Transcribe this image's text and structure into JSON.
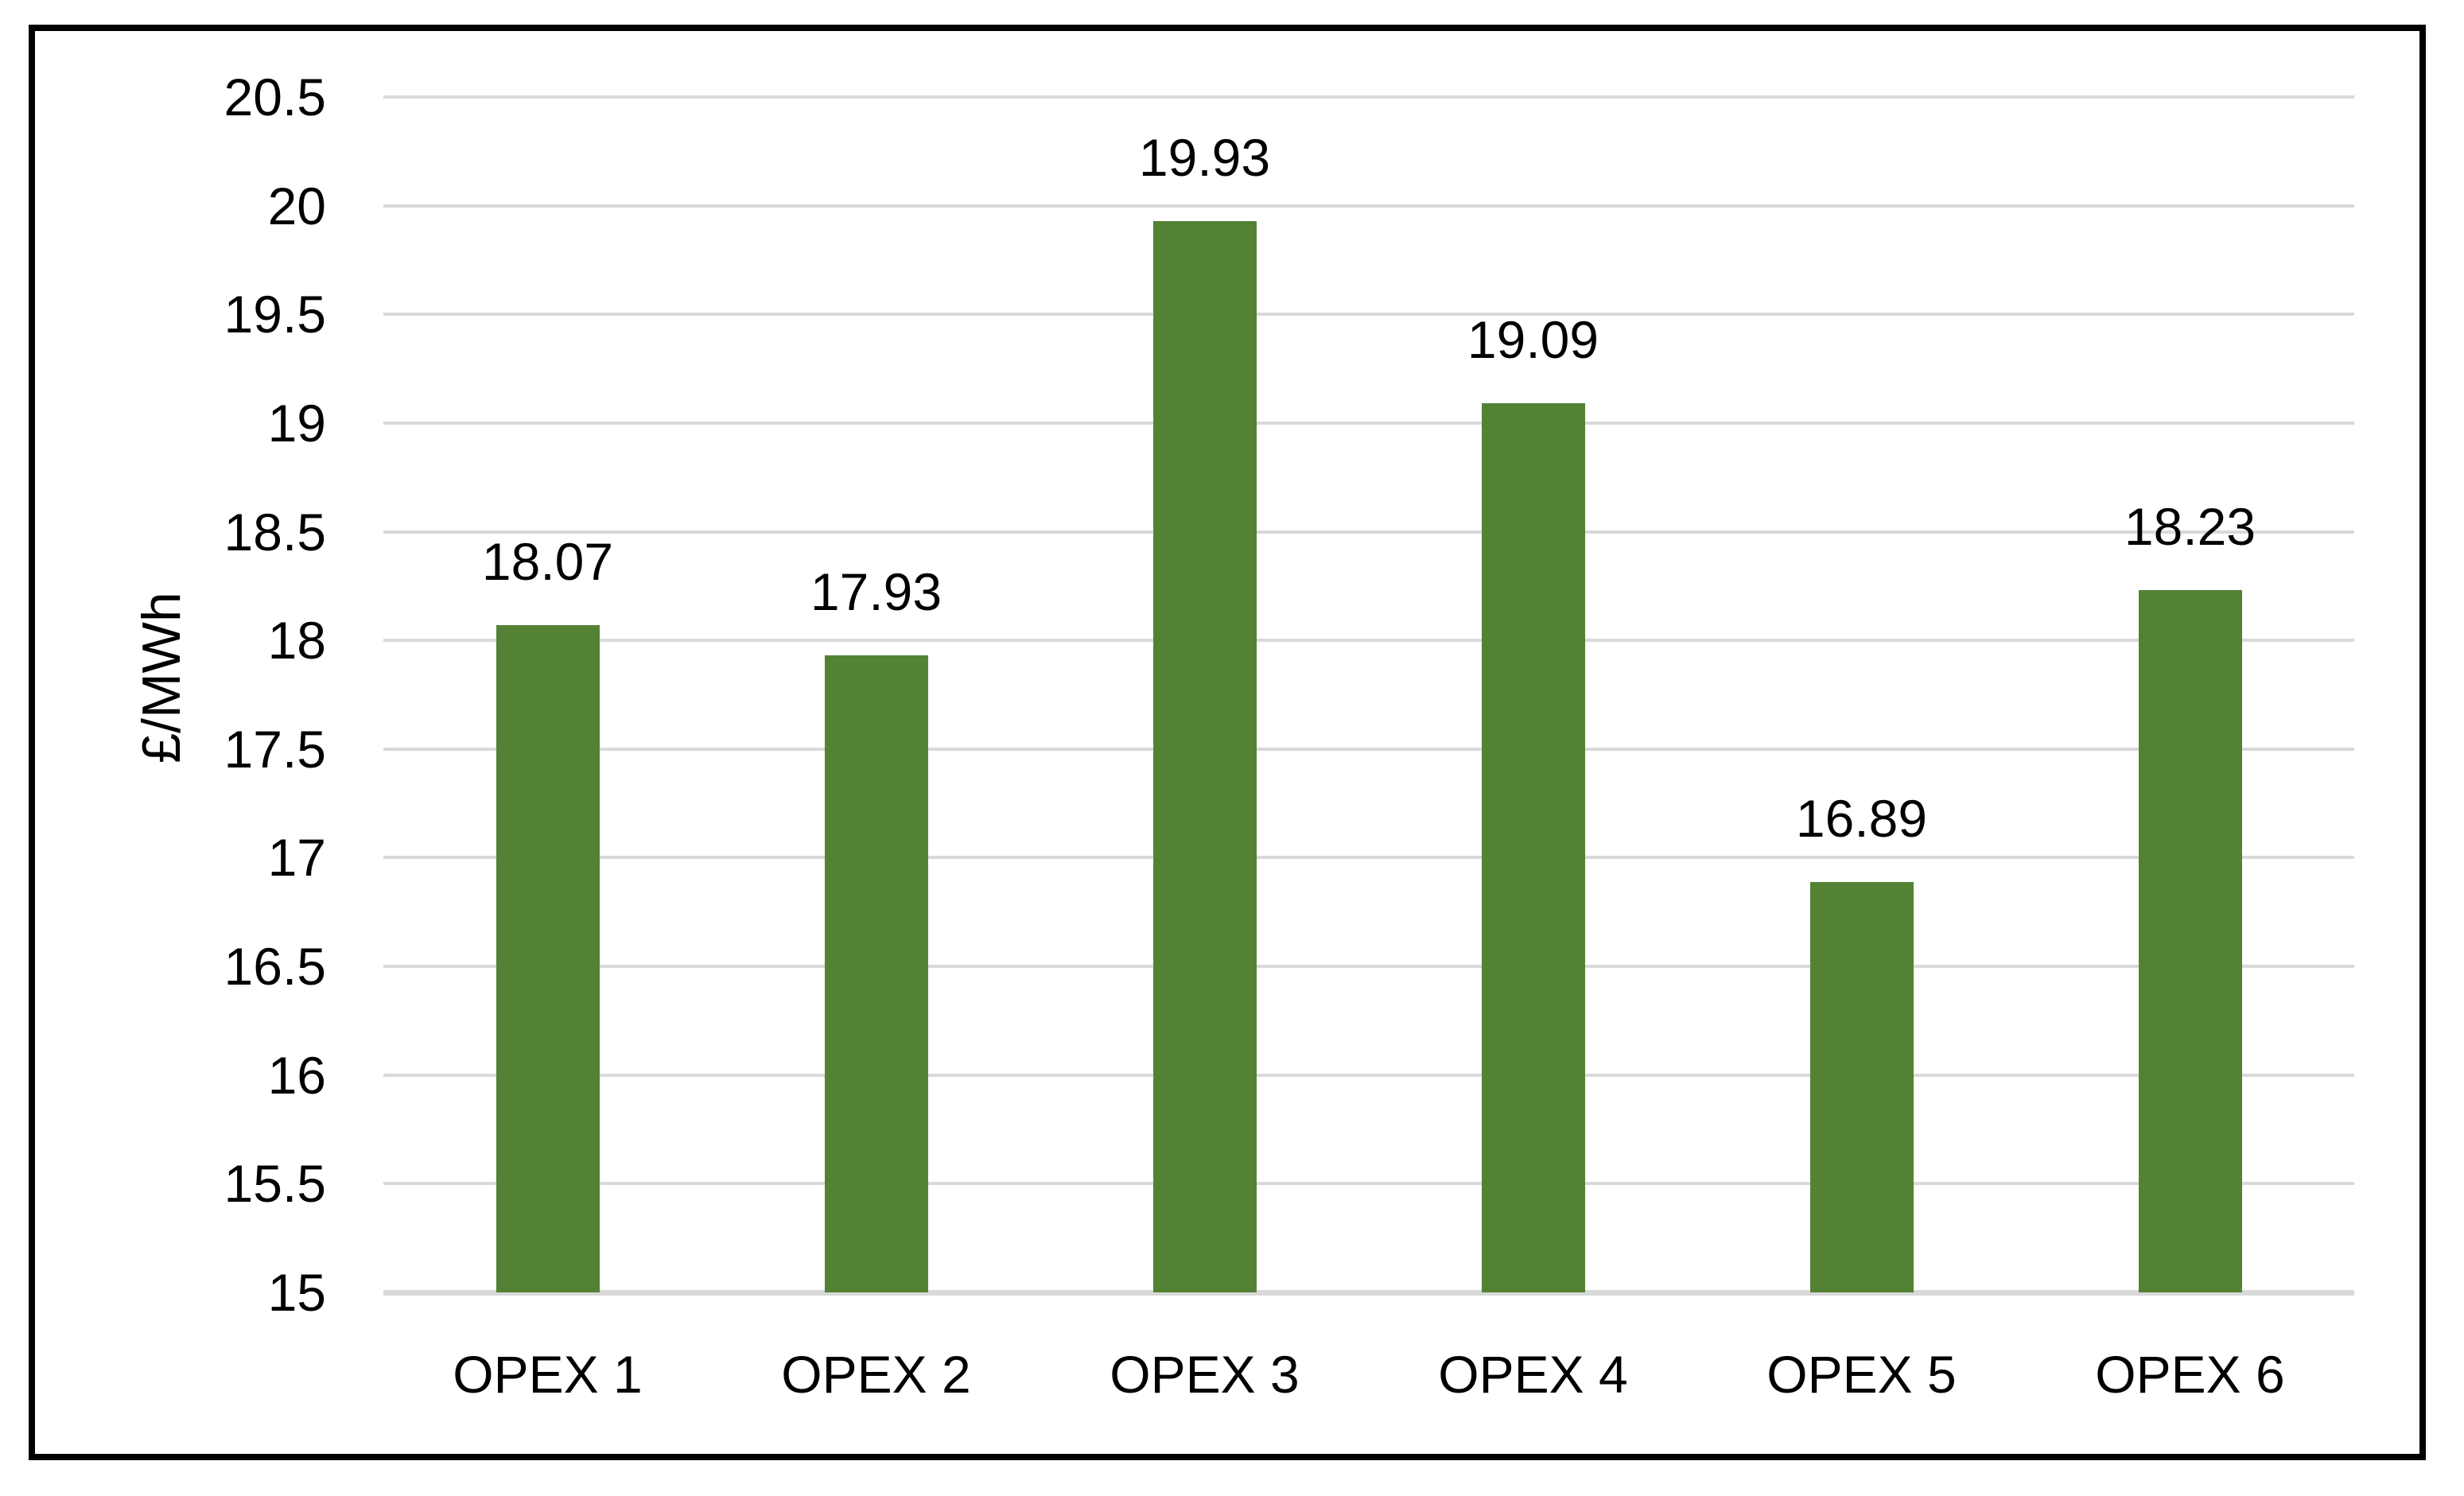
{
  "chart_data": {
    "type": "bar",
    "title": "",
    "categories": [
      "OPEX 1",
      "OPEX 2",
      "OPEX 3",
      "OPEX 4",
      "OPEX 5",
      "OPEX 6"
    ],
    "values": [
      18.07,
      17.93,
      19.93,
      19.09,
      16.89,
      18.23
    ],
    "data_labels": [
      "18.07",
      "17.93",
      "19.93",
      "19.09",
      "16.89",
      "18.23"
    ],
    "xlabel": "",
    "ylabel": "£/MWh",
    "ylim": [
      15,
      20.5
    ],
    "ytick_step": 0.5,
    "ytick_labels": [
      "20.5",
      "20",
      "19.5",
      "19",
      "18.5",
      "18",
      "17.5",
      "17",
      "16.5",
      "16",
      "15.5",
      "15"
    ],
    "grid": true,
    "legend": false,
    "legend_position": "none",
    "bar_color": "#548235",
    "gridline_color": "#D9D9D9",
    "axis_line_color": "#D9D9D9",
    "text_color": "#000000",
    "border_color": "#000000"
  }
}
